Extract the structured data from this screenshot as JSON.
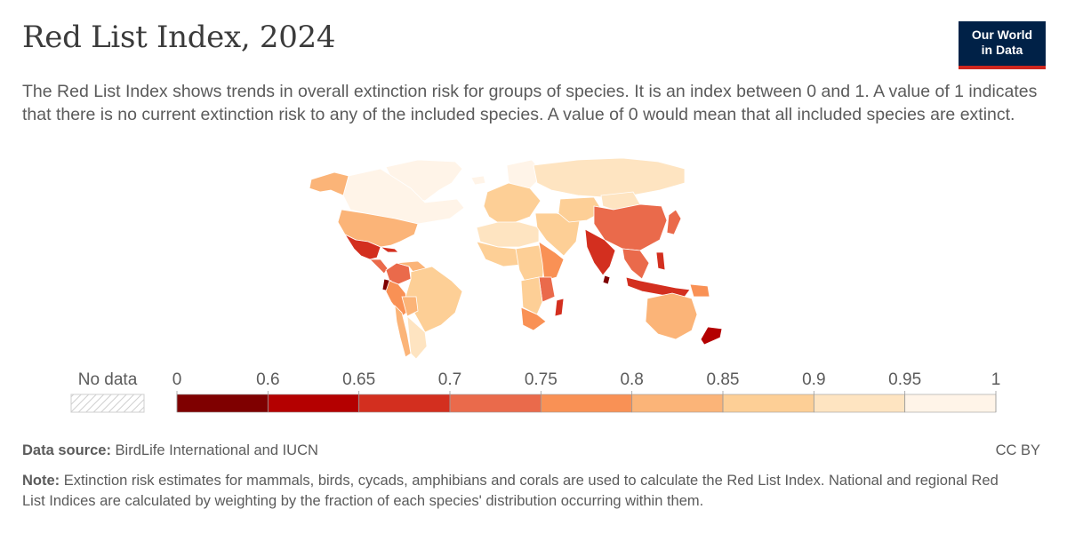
{
  "header": {
    "title": "Red List Index, 2024",
    "subtitle": "The Red List Index shows trends in overall extinction risk for groups of species. It is an index between 0 and 1. A value of 1 indicates that there is no current extinction risk to any of the included species. A value of 0 would mean that all included species are extinct."
  },
  "logo": {
    "line1": "Our World",
    "line2": "in Data"
  },
  "footer": {
    "source_label": "Data source:",
    "source_text": "BirdLife International and IUCN",
    "license": "CC BY",
    "note_label": "Note:",
    "note_text": "Extinction risk estimates for mammals, birds, cycads, amphibians and corals are used to calculate the Red List Index. National and regional Red List Indices are calculated by weighting by the fraction of each species' distribution occurring within them."
  },
  "colors": {
    "no_data": "#e6e6e6",
    "ocean": "#ffffff",
    "border": "#ffffff"
  },
  "chart_data": {
    "type": "choropleth-map",
    "title": "Red List Index, 2024",
    "no_data_label": "No data",
    "legend_ticks": [
      "0",
      "0.6",
      "0.65",
      "0.7",
      "0.75",
      "0.8",
      "0.85",
      "0.9",
      "0.95",
      "1"
    ],
    "bins": [
      {
        "from": 0,
        "to": 0.6,
        "color": "#7f0000"
      },
      {
        "from": 0.6,
        "to": 0.65,
        "color": "#b40000"
      },
      {
        "from": 0.65,
        "to": 0.7,
        "color": "#d32f1f"
      },
      {
        "from": 0.7,
        "to": 0.75,
        "color": "#ea6a4b"
      },
      {
        "from": 0.75,
        "to": 0.8,
        "color": "#f99155"
      },
      {
        "from": 0.8,
        "to": 0.85,
        "color": "#fbb478"
      },
      {
        "from": 0.85,
        "to": 0.9,
        "color": "#fdcf96"
      },
      {
        "from": 0.9,
        "to": 0.95,
        "color": "#fee4c1"
      },
      {
        "from": 0.95,
        "to": 1,
        "color": "#fff4e8"
      }
    ],
    "regions": [
      {
        "name": "Greenland",
        "value": 0.97
      },
      {
        "name": "Canada",
        "value": 0.96
      },
      {
        "name": "Alaska",
        "value": 0.84
      },
      {
        "name": "United States",
        "value": 0.84
      },
      {
        "name": "Mexico",
        "value": 0.67
      },
      {
        "name": "Cuba",
        "value": 0.68
      },
      {
        "name": "Central America",
        "value": 0.72
      },
      {
        "name": "Colombia",
        "value": 0.74
      },
      {
        "name": "Venezuela",
        "value": 0.85
      },
      {
        "name": "Ecuador",
        "value": 0.55
      },
      {
        "name": "Peru",
        "value": 0.77
      },
      {
        "name": "Brazil",
        "value": 0.87
      },
      {
        "name": "Bolivia",
        "value": 0.85
      },
      {
        "name": "Argentina",
        "value": 0.91
      },
      {
        "name": "Chile",
        "value": 0.82
      },
      {
        "name": "Iceland",
        "value": 0.96
      },
      {
        "name": "Scandinavia",
        "value": 0.96
      },
      {
        "name": "Europe",
        "value": 0.89
      },
      {
        "name": "Russia",
        "value": 0.94
      },
      {
        "name": "North Africa",
        "value": 0.93
      },
      {
        "name": "West Africa",
        "value": 0.9
      },
      {
        "name": "Central Africa",
        "value": 0.88
      },
      {
        "name": "East Africa",
        "value": 0.8
      },
      {
        "name": "Tanzania",
        "value": 0.72
      },
      {
        "name": "Southern Africa",
        "value": 0.86
      },
      {
        "name": "South Africa",
        "value": 0.78
      },
      {
        "name": "Madagascar",
        "value": 0.7
      },
      {
        "name": "Middle East",
        "value": 0.88
      },
      {
        "name": "Central Asia",
        "value": 0.9
      },
      {
        "name": "Mongolia",
        "value": 0.91
      },
      {
        "name": "China",
        "value": 0.71
      },
      {
        "name": "India",
        "value": 0.68
      },
      {
        "name": "Sri Lanka",
        "value": 0.6
      },
      {
        "name": "Southeast Asia",
        "value": 0.74
      },
      {
        "name": "Japan",
        "value": 0.72
      },
      {
        "name": "Philippines",
        "value": 0.66
      },
      {
        "name": "Indonesia",
        "value": 0.69
      },
      {
        "name": "Papua New Guinea",
        "value": 0.8
      },
      {
        "name": "Australia",
        "value": 0.84
      },
      {
        "name": "New Zealand",
        "value": 0.62
      }
    ]
  }
}
